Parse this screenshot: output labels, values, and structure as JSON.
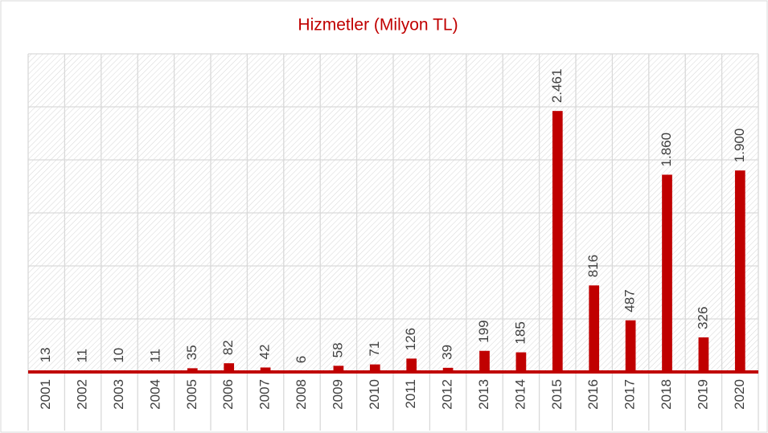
{
  "chart_data": {
    "type": "bar",
    "title": "Hizmetler (Milyon TL)",
    "categories": [
      "2001",
      "2002",
      "2003",
      "2004",
      "2005",
      "2006",
      "2007",
      "2008",
      "2009",
      "2010",
      "2011",
      "2012",
      "2013",
      "2014",
      "2015",
      "2016",
      "2017",
      "2018",
      "2019",
      "2020"
    ],
    "values": [
      13,
      11,
      10,
      11,
      35,
      82,
      42,
      6,
      58,
      71,
      126,
      39,
      199,
      185,
      2461,
      816,
      487,
      1860,
      326,
      1900
    ],
    "value_labels": [
      "13",
      "11",
      "10",
      "11",
      "35",
      "82",
      "42",
      "6",
      "58",
      "71",
      "126",
      "39",
      "199",
      "185",
      "2.461",
      "816",
      "487",
      "1.860",
      "326",
      "1.900"
    ],
    "color": "#c00000",
    "ylim": [
      0,
      3000
    ],
    "yticks": [
      0,
      500,
      1000,
      1500,
      2000,
      2500,
      3000
    ],
    "grid": true
  }
}
